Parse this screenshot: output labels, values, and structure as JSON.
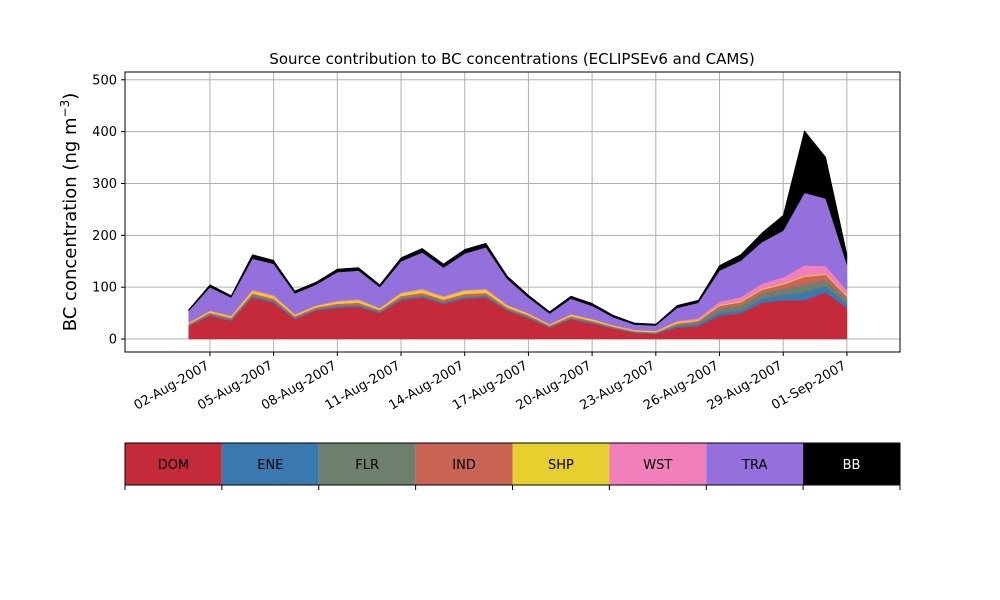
{
  "chart_data": {
    "type": "area",
    "stacked": true,
    "title": "Source contribution to BC concentrations (ECLIPSEv6 and CAMS)",
    "ylabel_main": "BC concentration (ng m",
    "ylabel_sup": "−3",
    "ylabel_close": ")",
    "xlabel": "",
    "ylim": [
      -25,
      515
    ],
    "yticks": [
      0,
      100,
      200,
      300,
      400,
      500
    ],
    "xticks": [
      "02-Aug-2007",
      "05-Aug-2007",
      "08-Aug-2007",
      "11-Aug-2007",
      "14-Aug-2007",
      "17-Aug-2007",
      "20-Aug-2007",
      "23-Aug-2007",
      "26-Aug-2007",
      "29-Aug-2007",
      "01-Sep-2007"
    ],
    "grid": true,
    "legend_placement": "below",
    "x": [
      "2007-08-01",
      "2007-08-02",
      "2007-08-03",
      "2007-08-04",
      "2007-08-05",
      "2007-08-06",
      "2007-08-07",
      "2007-08-08",
      "2007-08-09",
      "2007-08-10",
      "2007-08-11",
      "2007-08-12",
      "2007-08-13",
      "2007-08-14",
      "2007-08-15",
      "2007-08-16",
      "2007-08-17",
      "2007-08-18",
      "2007-08-19",
      "2007-08-20",
      "2007-08-21",
      "2007-08-22",
      "2007-08-23",
      "2007-08-24",
      "2007-08-25",
      "2007-08-26",
      "2007-08-27",
      "2007-08-28",
      "2007-08-29",
      "2007-08-30",
      "2007-08-31",
      "2007-09-01"
    ],
    "series": [
      {
        "name": "DOM",
        "color": "#c42a3a",
        "values": [
          25,
          45,
          35,
          80,
          70,
          38,
          55,
          60,
          62,
          50,
          75,
          80,
          68,
          78,
          80,
          55,
          40,
          22,
          38,
          30,
          20,
          12,
          10,
          22,
          25,
          45,
          50,
          70,
          75,
          75,
          90,
          60
        ]
      },
      {
        "name": "ENE",
        "color": "#3a78b0",
        "values": [
          1,
          2,
          2,
          3,
          3,
          2,
          2,
          3,
          3,
          2,
          3,
          3,
          3,
          3,
          3,
          2,
          2,
          1,
          2,
          2,
          1,
          1,
          1,
          3,
          4,
          6,
          5,
          8,
          10,
          15,
          12,
          8
        ]
      },
      {
        "name": "FLR",
        "color": "#6e7f6e",
        "values": [
          1,
          1,
          1,
          1,
          1,
          1,
          1,
          1,
          1,
          1,
          1,
          1,
          1,
          1,
          1,
          1,
          1,
          1,
          1,
          1,
          1,
          1,
          1,
          3,
          3,
          8,
          10,
          10,
          12,
          15,
          12,
          8
        ]
      },
      {
        "name": "IND",
        "color": "#c96455",
        "values": [
          2,
          3,
          3,
          4,
          4,
          3,
          3,
          4,
          4,
          3,
          4,
          5,
          4,
          5,
          5,
          3,
          3,
          2,
          3,
          2,
          2,
          1,
          1,
          2,
          3,
          5,
          6,
          7,
          8,
          15,
          10,
          6
        ]
      },
      {
        "name": "SHP",
        "color": "#e6cf2e",
        "values": [
          2,
          3,
          3,
          5,
          5,
          3,
          3,
          4,
          5,
          3,
          5,
          6,
          5,
          6,
          6,
          4,
          3,
          2,
          3,
          3,
          2,
          2,
          2,
          3,
          2,
          2,
          2,
          2,
          2,
          2,
          2,
          2
        ]
      },
      {
        "name": "WST",
        "color": "#f07fbc",
        "values": [
          1,
          1,
          1,
          2,
          2,
          1,
          1,
          2,
          2,
          1,
          2,
          2,
          2,
          2,
          2,
          1,
          1,
          1,
          1,
          1,
          1,
          1,
          1,
          2,
          3,
          6,
          8,
          10,
          12,
          20,
          15,
          10
        ]
      },
      {
        "name": "TRA",
        "color": "#9370db",
        "values": [
          22,
          45,
          35,
          60,
          60,
          40,
          40,
          55,
          55,
          40,
          60,
          70,
          55,
          70,
          80,
          50,
          30,
          20,
          30,
          25,
          15,
          10,
          10,
          25,
          30,
          60,
          70,
          80,
          90,
          140,
          130,
          50
        ]
      },
      {
        "name": "BB",
        "color": "#000000",
        "values": [
          3,
          5,
          4,
          8,
          7,
          5,
          5,
          6,
          6,
          5,
          7,
          8,
          7,
          8,
          8,
          6,
          5,
          4,
          5,
          5,
          4,
          3,
          3,
          5,
          5,
          10,
          12,
          18,
          30,
          120,
          80,
          20
        ]
      }
    ]
  }
}
